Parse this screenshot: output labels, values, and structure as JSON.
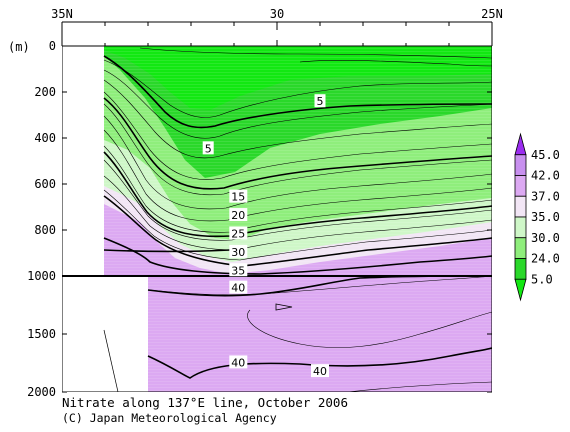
{
  "chart_data": {
    "type": "heatmap",
    "title": "Nitrate along 137°E line, October 2006",
    "credit": "(C) Japan Meteorological Agency",
    "xlim": [
      35,
      25
    ],
    "x_ticks": [
      {
        "value": 35,
        "label": "35N"
      },
      {
        "value": 30,
        "label": "30"
      },
      {
        "value": 25,
        "label": "25N"
      }
    ],
    "y_unit": "(m)",
    "y_upper": {
      "range": [
        0,
        1000
      ],
      "ticks": [
        0,
        200,
        400,
        600,
        800,
        1000
      ]
    },
    "y_lower": {
      "range": [
        1000,
        2000
      ],
      "ticks": [
        1500,
        2000
      ]
    },
    "colorbar": {
      "levels": [
        "45.0",
        "42.0",
        "37.0",
        "35.0",
        "30.0",
        "24.0",
        "5.0"
      ],
      "colors": [
        "#9b2df0",
        "#c890ef",
        "#dca9f2",
        "#f2e6f5",
        "#cff7c8",
        "#8fee7c",
        "#2ad82a",
        "#12e812"
      ]
    },
    "contour_labels": [
      {
        "text": "5",
        "lat": 29.0,
        "depth": 240
      },
      {
        "text": "5",
        "lat": 31.6,
        "depth": 445
      },
      {
        "text": "15",
        "lat": 30.9,
        "depth": 655
      },
      {
        "text": "20",
        "lat": 30.9,
        "depth": 735
      },
      {
        "text": "25",
        "lat": 30.9,
        "depth": 815
      },
      {
        "text": "30",
        "lat": 30.9,
        "depth": 895
      },
      {
        "text": "35",
        "lat": 30.9,
        "depth": 975
      },
      {
        "text": "40",
        "lat": 30.9,
        "depth": 1100
      },
      {
        "text": "40",
        "lat": 30.9,
        "depth": 1745
      },
      {
        "text": "40",
        "lat": 29.0,
        "depth": 1820
      }
    ]
  }
}
